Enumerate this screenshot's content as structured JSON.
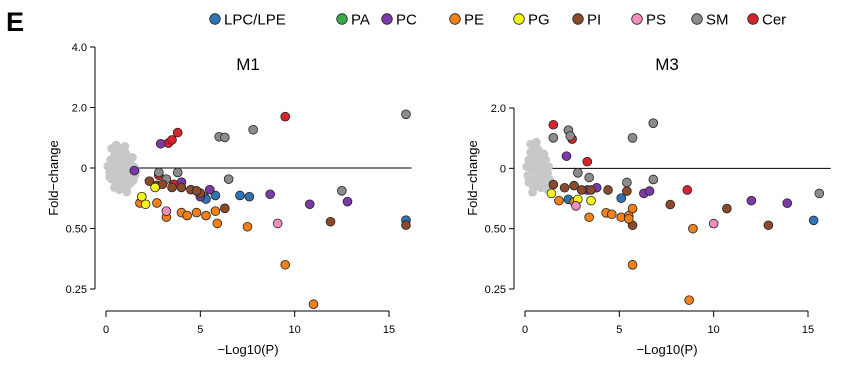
{
  "figure": {
    "panel_label": "E"
  },
  "legend": [
    {
      "name": "LPC/LPE",
      "color": "#2f74b5"
    },
    {
      "name": "PA",
      "color": "#3aa845"
    },
    {
      "name": "PC",
      "color": "#7b3aa8"
    },
    {
      "name": "PE",
      "color": "#f07f1c"
    },
    {
      "name": "PG",
      "color": "#f5f51e"
    },
    {
      "name": "PI",
      "color": "#8b4a2b"
    },
    {
      "name": "PS",
      "color": "#f08ec0"
    },
    {
      "name": "SM",
      "color": "#8c8c8c"
    },
    {
      "name": "Cer",
      "color": "#d8242b"
    }
  ],
  "nonsig_color": "#c8c8c8",
  "chart_data": [
    {
      "type": "scatter",
      "title": "M1",
      "xlabel": "−Log10(P)",
      "ylabel": "Fold−change",
      "y_scale": "log2",
      "xlim": [
        0,
        16
      ],
      "ylim": [
        0.21,
        4.6
      ],
      "xticks": [
        0,
        5,
        10,
        15
      ],
      "yticks": [
        {
          "value": 4.0,
          "label": "4.0"
        },
        {
          "value": 2.0,
          "label": "2.0"
        },
        {
          "value": 1.0,
          "label": "0"
        },
        {
          "value": 0.5,
          "label": "0.50"
        },
        {
          "value": 0.25,
          "label": "0.25"
        }
      ],
      "reference_line_y": 1.0,
      "nonsignificant_points": [
        [
          0.1,
          1.02
        ],
        [
          0.2,
          0.95
        ],
        [
          0.25,
          1.1
        ],
        [
          0.3,
          0.88
        ],
        [
          0.35,
          1.05
        ],
        [
          0.4,
          0.92
        ],
        [
          0.45,
          1.15
        ],
        [
          0.5,
          1.0
        ],
        [
          0.55,
          0.85
        ],
        [
          0.6,
          1.08
        ],
        [
          0.65,
          0.9
        ],
        [
          0.7,
          1.2
        ],
        [
          0.75,
          0.97
        ],
        [
          0.8,
          0.82
        ],
        [
          0.85,
          1.12
        ],
        [
          0.9,
          0.94
        ],
        [
          0.95,
          1.03
        ],
        [
          1.0,
          0.88
        ],
        [
          1.05,
          1.18
        ],
        [
          1.1,
          0.8
        ],
        [
          1.15,
          0.99
        ],
        [
          1.2,
          0.9
        ],
        [
          1.25,
          1.07
        ],
        [
          1.3,
          0.84
        ],
        [
          1.35,
          0.96
        ],
        [
          1.4,
          1.13
        ],
        [
          1.45,
          0.87
        ],
        [
          1.5,
          1.01
        ],
        [
          1.55,
          0.93
        ],
        [
          0.3,
          1.25
        ],
        [
          0.55,
          1.3
        ],
        [
          0.7,
          0.78
        ],
        [
          0.9,
          1.22
        ],
        [
          1.1,
          0.76
        ],
        [
          1.3,
          1.1
        ],
        [
          0.45,
          0.8
        ],
        [
          1.0,
          1.28
        ],
        [
          1.6,
          0.96
        ],
        [
          0.2,
          0.9
        ],
        [
          0.8,
          1.05
        ]
      ],
      "series": [
        {
          "name": "Cer",
          "points": [
            [
              3.3,
              1.33
            ],
            [
              3.5,
              1.38
            ],
            [
              3.8,
              1.5
            ],
            [
              9.5,
              1.8
            ],
            [
              2.8,
              0.92
            ],
            [
              3.6,
              0.83
            ]
          ]
        },
        {
          "name": "SM",
          "points": [
            [
              6.0,
              1.43
            ],
            [
              6.3,
              1.42
            ],
            [
              7.8,
              1.55
            ],
            [
              15.9,
              1.85
            ],
            [
              12.5,
              0.77
            ],
            [
              5.2,
              0.72
            ],
            [
              6.5,
              0.88
            ],
            [
              2.8,
              0.95
            ],
            [
              3.2,
              0.88
            ],
            [
              3.8,
              0.95
            ]
          ]
        },
        {
          "name": "LPC/LPE",
          "points": [
            [
              5.8,
              0.73
            ],
            [
              7.1,
              0.73
            ],
            [
              7.6,
              0.72
            ],
            [
              15.9,
              0.55
            ],
            [
              5.3,
              0.7
            ]
          ]
        },
        {
          "name": "PC",
          "points": [
            [
              2.9,
              1.32
            ],
            [
              1.5,
              0.97
            ],
            [
              5.0,
              0.72
            ],
            [
              5.5,
              0.78
            ],
            [
              8.7,
              0.74
            ],
            [
              10.8,
              0.66
            ],
            [
              12.8,
              0.68
            ],
            [
              4.0,
              0.85
            ]
          ]
        },
        {
          "name": "PI",
          "points": [
            [
              2.3,
              0.86
            ],
            [
              2.7,
              0.82
            ],
            [
              3.0,
              0.83
            ],
            [
              3.5,
              0.8
            ],
            [
              4.0,
              0.8
            ],
            [
              4.5,
              0.78
            ],
            [
              5.0,
              0.75
            ],
            [
              6.3,
              0.63
            ],
            [
              11.9,
              0.54
            ],
            [
              15.9,
              0.52
            ],
            [
              4.8,
              0.77
            ]
          ]
        },
        {
          "name": "PE",
          "points": [
            [
              1.8,
              0.67
            ],
            [
              2.7,
              0.67
            ],
            [
              4.0,
              0.6
            ],
            [
              4.3,
              0.58
            ],
            [
              4.8,
              0.6
            ],
            [
              5.3,
              0.58
            ],
            [
              5.8,
              0.61
            ],
            [
              5.9,
              0.53
            ],
            [
              7.5,
              0.51
            ],
            [
              9.5,
              0.33
            ],
            [
              11.0,
              0.21
            ],
            [
              3.2,
              0.57
            ]
          ]
        },
        {
          "name": "PG",
          "points": [
            [
              2.1,
              0.66
            ],
            [
              1.9,
              0.72
            ],
            [
              2.6,
              0.8
            ]
          ]
        },
        {
          "name": "PS",
          "points": [
            [
              3.2,
              0.61
            ],
            [
              9.1,
              0.53
            ]
          ]
        }
      ]
    },
    {
      "type": "scatter",
      "title": "M3",
      "xlabel": "−Log10(P)",
      "ylabel": "Fold−change",
      "y_scale": "log2",
      "xlim": [
        0,
        16
      ],
      "ylim": [
        0.21,
        2.3
      ],
      "xticks": [
        0,
        5,
        10,
        15
      ],
      "yticks": [
        {
          "value": 2.0,
          "label": "2.0"
        },
        {
          "value": 1.0,
          "label": "0"
        },
        {
          "value": 0.5,
          "label": "0.50"
        },
        {
          "value": 0.25,
          "label": "0.25"
        }
      ],
      "reference_line_y": 1.0,
      "nonsignificant_points": [
        [
          0.1,
          1.02
        ],
        [
          0.15,
          0.92
        ],
        [
          0.2,
          1.1
        ],
        [
          0.25,
          0.86
        ],
        [
          0.3,
          1.2
        ],
        [
          0.35,
          0.95
        ],
        [
          0.4,
          1.05
        ],
        [
          0.45,
          0.8
        ],
        [
          0.5,
          1.15
        ],
        [
          0.55,
          0.9
        ],
        [
          0.6,
          0.98
        ],
        [
          0.65,
          1.08
        ],
        [
          0.7,
          0.84
        ],
        [
          0.75,
          1.12
        ],
        [
          0.8,
          0.93
        ],
        [
          0.85,
          1.0
        ],
        [
          0.9,
          0.87
        ],
        [
          0.95,
          1.06
        ],
        [
          1.0,
          0.82
        ],
        [
          1.05,
          0.96
        ],
        [
          1.1,
          1.1
        ],
        [
          1.15,
          0.9
        ],
        [
          1.2,
          0.78
        ],
        [
          1.25,
          1.02
        ],
        [
          0.3,
          1.32
        ],
        [
          0.5,
          1.28
        ],
        [
          0.2,
          0.85
        ],
        [
          0.7,
          1.24
        ],
        [
          1.0,
          1.18
        ],
        [
          0.4,
          0.76
        ],
        [
          1.3,
          0.88
        ],
        [
          0.6,
          1.35
        ],
        [
          0.85,
          0.8
        ],
        [
          1.2,
          0.95
        ]
      ],
      "series": [
        {
          "name": "Cer",
          "points": [
            [
              1.5,
              1.65
            ],
            [
              2.5,
              1.4
            ],
            [
              3.3,
              1.08
            ],
            [
              8.6,
              0.78
            ]
          ]
        },
        {
          "name": "SM",
          "points": [
            [
              1.5,
              1.42
            ],
            [
              2.3,
              1.55
            ],
            [
              2.4,
              1.45
            ],
            [
              5.7,
              1.42
            ],
            [
              6.8,
              1.68
            ],
            [
              6.8,
              0.88
            ],
            [
              15.6,
              0.75
            ],
            [
              3.4,
              0.9
            ],
            [
              2.8,
              0.95
            ],
            [
              5.4,
              0.85
            ]
          ]
        },
        {
          "name": "LPC/LPE",
          "points": [
            [
              2.3,
              0.7
            ],
            [
              5.1,
              0.71
            ],
            [
              15.3,
              0.55
            ]
          ]
        },
        {
          "name": "PC",
          "points": [
            [
              2.2,
              1.15
            ],
            [
              3.3,
              0.78
            ],
            [
              3.8,
              0.8
            ],
            [
              6.3,
              0.75
            ],
            [
              6.6,
              0.77
            ],
            [
              12.0,
              0.69
            ],
            [
              13.9,
              0.67
            ]
          ]
        },
        {
          "name": "PI",
          "points": [
            [
              1.5,
              0.83
            ],
            [
              2.1,
              0.8
            ],
            [
              2.6,
              0.82
            ],
            [
              3.0,
              0.78
            ],
            [
              3.5,
              0.78
            ],
            [
              4.4,
              0.78
            ],
            [
              5.4,
              0.77
            ],
            [
              5.7,
              0.52
            ],
            [
              7.7,
              0.66
            ],
            [
              10.7,
              0.63
            ],
            [
              12.9,
              0.52
            ]
          ]
        },
        {
          "name": "PE",
          "points": [
            [
              1.8,
              0.69
            ],
            [
              2.6,
              0.68
            ],
            [
              3.4,
              0.57
            ],
            [
              4.3,
              0.6
            ],
            [
              4.6,
              0.59
            ],
            [
              5.1,
              0.57
            ],
            [
              5.5,
              0.58
            ],
            [
              5.7,
              0.63
            ],
            [
              5.5,
              0.56
            ],
            [
              8.9,
              0.5
            ],
            [
              5.7,
              0.33
            ],
            [
              8.7,
              0.22
            ]
          ]
        },
        {
          "name": "PG",
          "points": [
            [
              1.4,
              0.75
            ],
            [
              2.8,
              0.7
            ],
            [
              3.5,
              0.69
            ]
          ]
        },
        {
          "name": "PS",
          "points": [
            [
              10.0,
              0.53
            ],
            [
              2.7,
              0.65
            ]
          ]
        }
      ]
    }
  ]
}
